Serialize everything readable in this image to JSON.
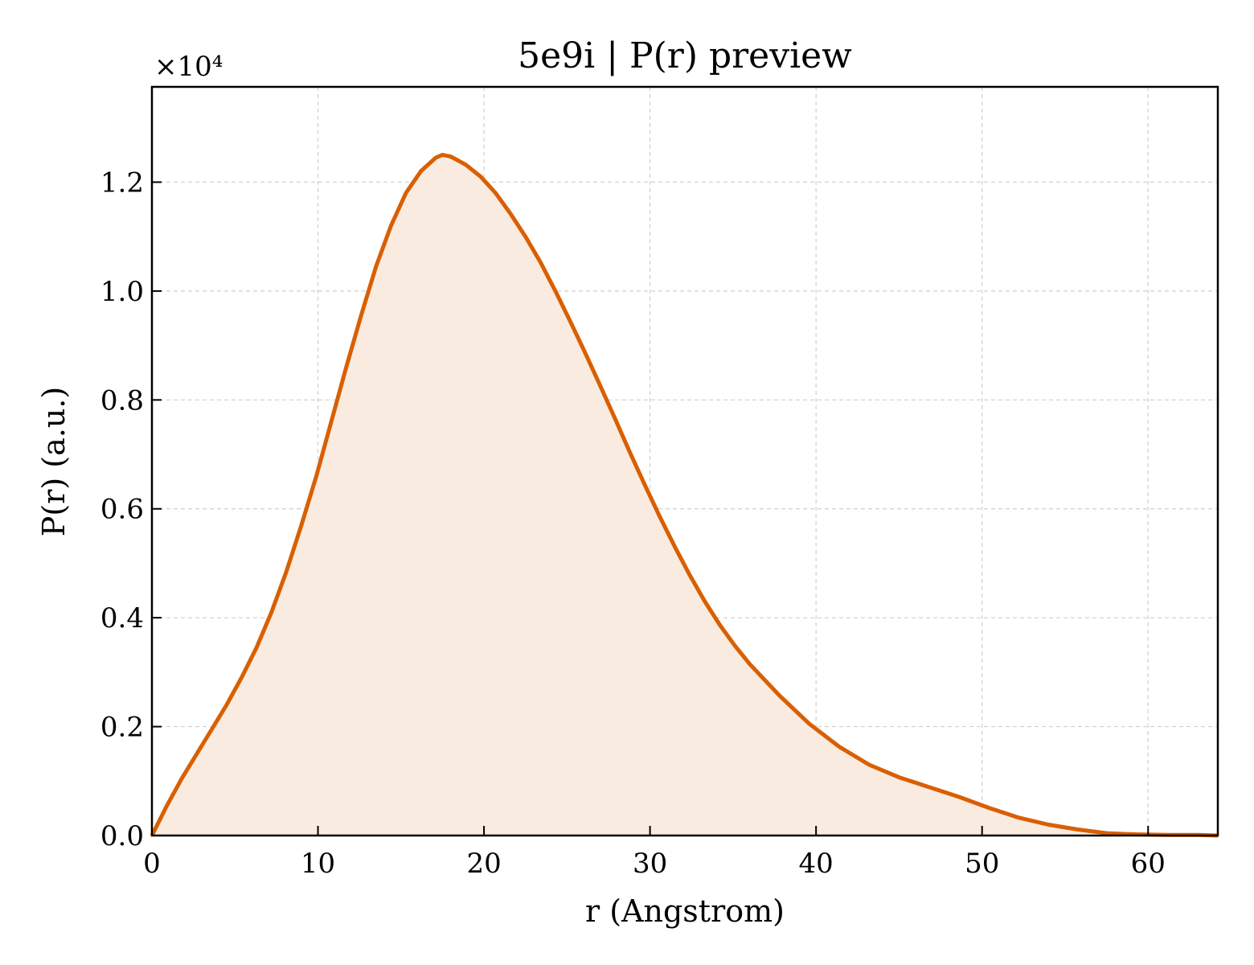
{
  "chart_data": {
    "type": "area",
    "title": "5e9i | P(r) preview",
    "xlabel": "r (Angstrom)",
    "ylabel": "P(r) (a.u.)",
    "y_multiplier_label": "×10⁴",
    "xlim": [
      0,
      64.2
    ],
    "ylim": [
      0,
      1.375
    ],
    "x_ticks": [
      0,
      10,
      20,
      30,
      40,
      50,
      60
    ],
    "y_ticks": [
      0.0,
      0.2,
      0.4,
      0.6,
      0.8,
      1.0,
      1.2
    ],
    "x_tick_labels": [
      "0",
      "10",
      "20",
      "30",
      "40",
      "50",
      "60"
    ],
    "y_tick_labels": [
      "0.0",
      "0.2",
      "0.4",
      "0.6",
      "0.8",
      "1.0",
      "1.2"
    ],
    "grid": true,
    "line_color": "#d95f02",
    "fill_color": "#f9ebe0",
    "series": [
      {
        "x": [
          0,
          0.9,
          1.8,
          2.7,
          3.6,
          4.5,
          5.4,
          6.3,
          7.2,
          8.1,
          9.0,
          9.9,
          10.8,
          11.7,
          12.6,
          13.5,
          14.4,
          15.3,
          16.2,
          17.1,
          17.5,
          18.0,
          18.9,
          19.8,
          20.7,
          21.6,
          22.5,
          23.4,
          24.3,
          25.2,
          26.1,
          27.0,
          27.9,
          28.8,
          29.7,
          30.6,
          31.5,
          32.4,
          33.3,
          34.2,
          35.1,
          36.0,
          37.8,
          39.6,
          41.4,
          43.2,
          45.0,
          46.8,
          48.6,
          50.4,
          52.2,
          54.0,
          55.8,
          57.6,
          59.4,
          61.2,
          63.0,
          64.2
        ],
        "y": [
          0.0,
          0.055,
          0.105,
          0.15,
          0.195,
          0.24,
          0.29,
          0.345,
          0.41,
          0.485,
          0.57,
          0.66,
          0.76,
          0.86,
          0.955,
          1.045,
          1.12,
          1.18,
          1.22,
          1.245,
          1.25,
          1.247,
          1.232,
          1.21,
          1.18,
          1.142,
          1.1,
          1.053,
          1.0,
          0.944,
          0.886,
          0.826,
          0.765,
          0.703,
          0.643,
          0.585,
          0.53,
          0.478,
          0.43,
          0.387,
          0.349,
          0.315,
          0.257,
          0.205,
          0.163,
          0.13,
          0.107,
          0.089,
          0.071,
          0.051,
          0.033,
          0.02,
          0.011,
          0.004,
          0.002,
          0.001,
          0.001,
          0.0
        ]
      }
    ]
  }
}
